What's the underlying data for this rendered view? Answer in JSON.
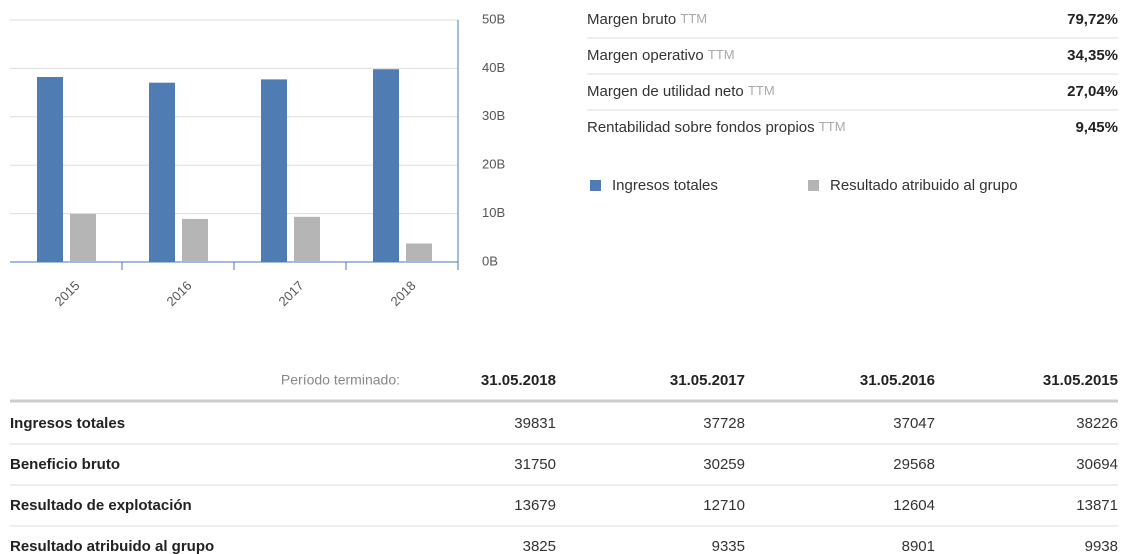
{
  "chart_data": {
    "type": "bar",
    "categories": [
      "2015",
      "2016",
      "2017",
      "2018"
    ],
    "series": [
      {
        "name": "Ingresos totales",
        "color": "#4f7cb3",
        "values": [
          38.226,
          37.047,
          37.728,
          39.831
        ]
      },
      {
        "name": "Resultado atribuido al grupo",
        "color": "#b5b5b5",
        "values": [
          9.938,
          8.901,
          9.335,
          3.825
        ]
      }
    ],
    "ylim": [
      0,
      50
    ],
    "yticks": [
      {
        "value": 0,
        "label": "0B"
      },
      {
        "value": 10,
        "label": "10B"
      },
      {
        "value": 20,
        "label": "20B"
      },
      {
        "value": 30,
        "label": "30B"
      },
      {
        "value": 40,
        "label": "40B"
      },
      {
        "value": 50,
        "label": "50B"
      }
    ],
    "grid": true
  },
  "metrics": [
    {
      "label": "Margen bruto",
      "suffix": "TTM",
      "value": "79,72%"
    },
    {
      "label": "Margen operativo",
      "suffix": "TTM",
      "value": "34,35%"
    },
    {
      "label": "Margen de utilidad neto",
      "suffix": "TTM",
      "value": "27,04%"
    },
    {
      "label": "Rentabilidad sobre fondos propios",
      "suffix": "TTM",
      "value": "9,45%"
    }
  ],
  "table": {
    "header": [
      "Período terminado:",
      "31.05.2018",
      "31.05.2017",
      "31.05.2016",
      "31.05.2015"
    ],
    "rows": [
      [
        "Ingresos totales",
        39831,
        37728,
        37047,
        38226
      ],
      [
        "Beneficio bruto",
        31750,
        30259,
        29568,
        30694
      ],
      [
        "Resultado de explotación",
        13679,
        12710,
        12604,
        13871
      ],
      [
        "Resultado atribuido al grupo",
        3825,
        9335,
        8901,
        9938
      ]
    ]
  }
}
